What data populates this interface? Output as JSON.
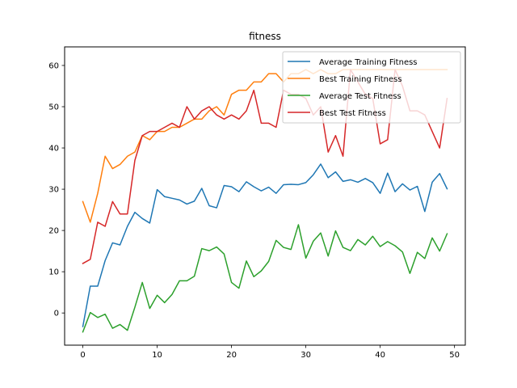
{
  "chart_data": {
    "type": "line",
    "title": "fitness",
    "xlabel": "",
    "ylabel": "",
    "xlim": [
      -2.45,
      51.45
    ],
    "ylim": [
      -7.8,
      64.5
    ],
    "xticks": [
      0,
      10,
      20,
      30,
      40,
      50
    ],
    "yticks": [
      0,
      10,
      20,
      30,
      40,
      50,
      60
    ],
    "grid": false,
    "legend_position": "top-right",
    "x": [
      0,
      1,
      2,
      3,
      4,
      5,
      6,
      7,
      8,
      9,
      10,
      11,
      12,
      13,
      14,
      15,
      16,
      17,
      18,
      19,
      20,
      21,
      22,
      23,
      24,
      25,
      26,
      27,
      28,
      29,
      30,
      31,
      32,
      33,
      34,
      35,
      36,
      37,
      38,
      39,
      40,
      41,
      42,
      43,
      44,
      45,
      46,
      47,
      48,
      49
    ],
    "series": [
      {
        "name": "Average Training Fitness",
        "color": "#1f77b4",
        "values": [
          -3.3,
          6.5,
          6.5,
          12.7,
          17.0,
          16.5,
          21.0,
          24.4,
          22.9,
          21.8,
          29.9,
          28.2,
          27.8,
          27.4,
          26.4,
          27.1,
          30.2,
          26.0,
          25.5,
          30.9,
          30.6,
          29.4,
          31.8,
          30.6,
          29.6,
          30.5,
          29.0,
          31.1,
          31.2,
          31.1,
          31.6,
          33.5,
          36.1,
          32.8,
          34.2,
          31.9,
          32.3,
          31.7,
          32.6,
          31.6,
          29.0,
          33.9,
          29.4,
          31.3,
          29.8,
          30.7,
          24.6,
          31.7,
          33.8,
          30.1
        ]
      },
      {
        "name": "Best Training Fitness",
        "color": "#ff7f0e",
        "values": [
          27,
          22,
          29,
          38,
          35,
          36,
          38,
          39,
          43,
          42,
          44,
          44,
          45,
          45,
          46,
          47,
          47,
          49,
          50,
          48,
          53,
          54,
          54,
          56,
          56,
          58,
          58,
          56,
          58,
          58,
          59,
          58,
          59,
          58,
          58,
          59,
          59,
          59,
          59,
          59,
          59,
          59,
          59,
          59,
          59,
          59,
          59,
          59,
          59,
          59
        ]
      },
      {
        "name": "Average Test Fitness",
        "color": "#2ca02c",
        "values": [
          -4.6,
          0.1,
          -1.1,
          -0.3,
          -3.7,
          -2.8,
          -4.2,
          1.4,
          7.4,
          1.1,
          4.3,
          2.5,
          4.5,
          7.8,
          7.8,
          8.9,
          15.6,
          15.1,
          16.0,
          14.3,
          7.4,
          6.0,
          12.6,
          8.8,
          10.2,
          12.5,
          17.6,
          15.9,
          15.4,
          21.4,
          13.3,
          17.4,
          19.4,
          13.8,
          19.9,
          15.9,
          15.1,
          17.8,
          16.5,
          18.6,
          16.1,
          17.3,
          16.3,
          14.8,
          9.6,
          14.7,
          13.2,
          18.2,
          15.0,
          19.2
        ]
      },
      {
        "name": "Best Test Fitness",
        "color": "#d62728",
        "values": [
          12,
          13,
          22,
          21,
          27,
          24,
          24,
          37,
          43,
          44,
          44,
          45,
          46,
          45,
          50,
          47,
          49,
          50,
          48,
          47,
          48,
          47,
          49,
          54,
          46,
          46,
          45,
          54,
          53,
          53,
          52,
          48,
          50,
          39,
          43,
          38,
          59,
          56,
          53,
          52,
          41,
          42,
          59,
          55,
          49,
          49,
          48,
          44,
          40,
          52
        ]
      }
    ]
  }
}
